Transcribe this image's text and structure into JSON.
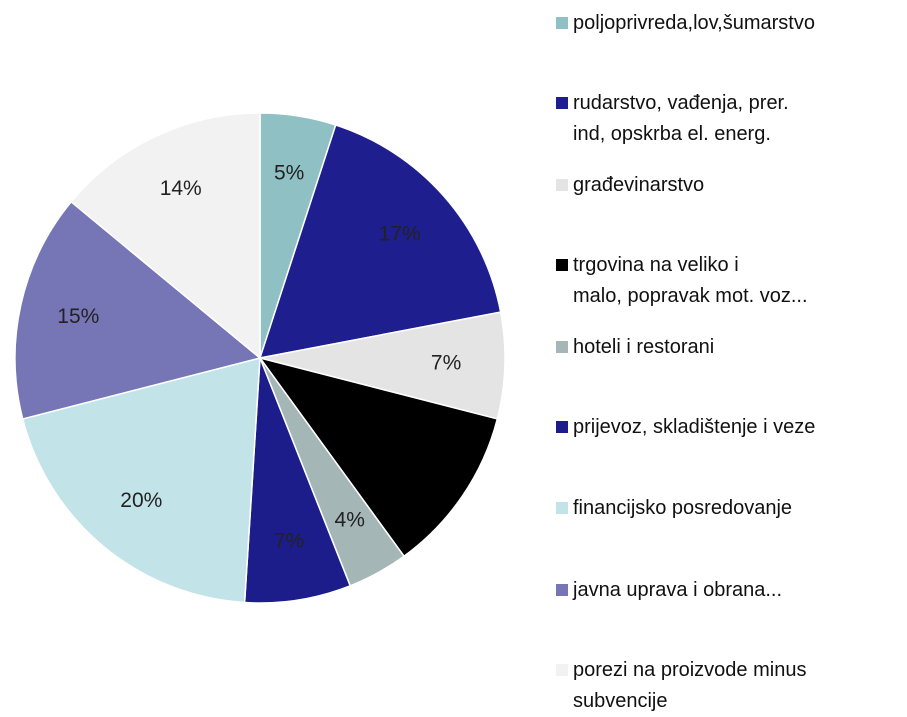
{
  "chart_data": {
    "type": "pie",
    "categories": [
      "poljoprivreda,lov,šumarstvo",
      "rudarstvo, vađenja, prer.\nind, opskrba el. energ.",
      "građevinarstvo",
      "trgovina na veliko i\nmalo, popravak mot. voz...",
      "hoteli i restorani",
      "prijevoz, skladištenje i veze",
      "financijsko posredovanje",
      "javna uprava i obrana...",
      "porezi na proizvode minus\nsubvencije"
    ],
    "values": [
      5,
      17,
      7,
      11,
      4,
      7,
      20,
      15,
      14
    ],
    "value_labels": [
      "5%",
      "17%",
      "7%",
      null,
      "4%",
      "7%",
      "20%",
      "15%",
      "14%"
    ],
    "colors": [
      "#8fc0c4",
      "#1e1e8e",
      "#e4e4e4",
      "#000000",
      "#a4b6b6",
      "#1c1c8a",
      "#c2e4e8",
      "#7676b6",
      "#f2f2f2"
    ],
    "legend": "right"
  }
}
